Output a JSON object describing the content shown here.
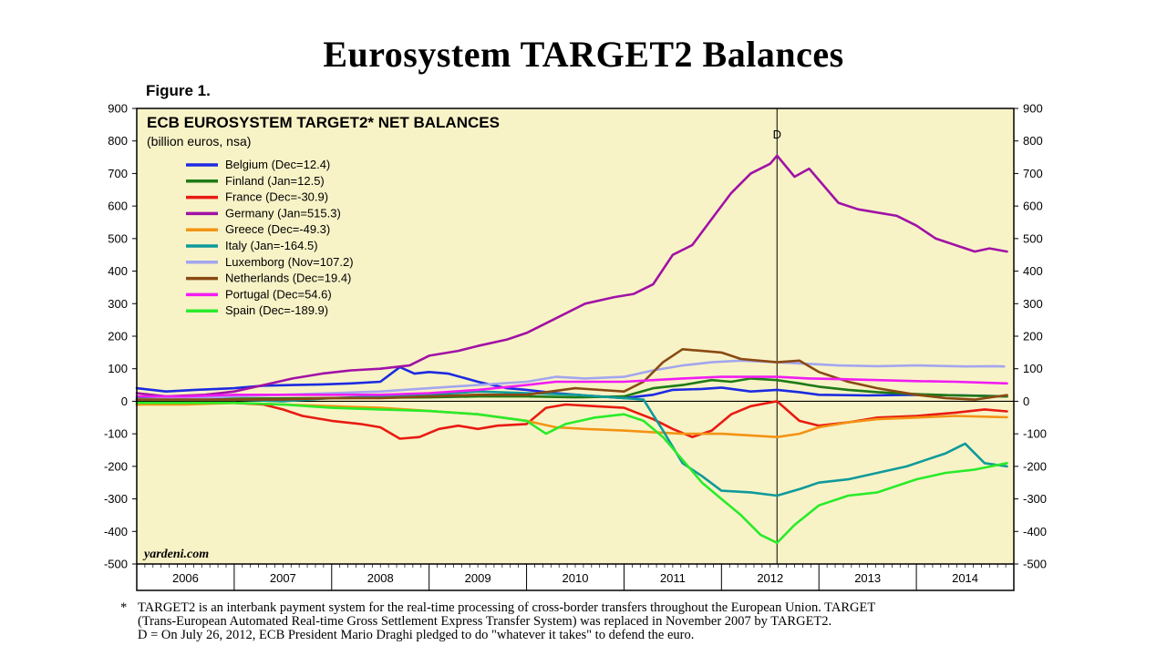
{
  "page": {
    "title": "Eurosystem TARGET2 Balances",
    "figure_label": "Figure 1."
  },
  "chart_data": {
    "type": "line",
    "title": "ECB EUROSYSTEM TARGET2* NET BALANCES",
    "subtitle": "(billion euros, nsa)",
    "xlabel": "",
    "ylabel": "",
    "ylim": [
      -500,
      900
    ],
    "y_ticks": [
      900,
      800,
      700,
      600,
      500,
      400,
      300,
      200,
      100,
      0,
      -100,
      -200,
      -300,
      -400,
      -500
    ],
    "x_range": [
      2006.0,
      2015.0
    ],
    "x_tick_labels": [
      "2006",
      "2007",
      "2008",
      "2009",
      "2010",
      "2011",
      "2012",
      "2013",
      "2014"
    ],
    "grid": false,
    "legend_position": "top-left",
    "background_color": "#f8f3c7",
    "zero_line": true,
    "annotation": {
      "label": "D",
      "x": 2012.57
    },
    "watermark": "yardeni.com",
    "series": [
      {
        "name": "Belgium (Dec=12.4)",
        "color": "#1c2be0",
        "points": [
          [
            2006.0,
            40
          ],
          [
            2006.3,
            30
          ],
          [
            2006.6,
            35
          ],
          [
            2007.0,
            40
          ],
          [
            2007.3,
            48
          ],
          [
            2007.6,
            50
          ],
          [
            2007.9,
            52
          ],
          [
            2008.2,
            55
          ],
          [
            2008.5,
            60
          ],
          [
            2008.7,
            105
          ],
          [
            2008.85,
            85
          ],
          [
            2009.0,
            90
          ],
          [
            2009.2,
            85
          ],
          [
            2009.5,
            60
          ],
          [
            2009.8,
            40
          ],
          [
            2010.0,
            35
          ],
          [
            2010.3,
            25
          ],
          [
            2010.6,
            18
          ],
          [
            2011.0,
            10
          ],
          [
            2011.3,
            20
          ],
          [
            2011.5,
            35
          ],
          [
            2011.8,
            38
          ],
          [
            2012.0,
            42
          ],
          [
            2012.3,
            30
          ],
          [
            2012.57,
            35
          ],
          [
            2012.8,
            28
          ],
          [
            2013.0,
            20
          ],
          [
            2013.5,
            18
          ],
          [
            2014.0,
            20
          ],
          [
            2014.5,
            18
          ],
          [
            2014.93,
            15
          ]
        ]
      },
      {
        "name": "Finland (Jan=12.5)",
        "color": "#1e7a16",
        "points": [
          [
            2006.0,
            5
          ],
          [
            2007.0,
            8
          ],
          [
            2008.0,
            10
          ],
          [
            2009.0,
            12
          ],
          [
            2009.5,
            15
          ],
          [
            2010.0,
            15
          ],
          [
            2010.5,
            12
          ],
          [
            2011.0,
            15
          ],
          [
            2011.3,
            40
          ],
          [
            2011.6,
            50
          ],
          [
            2011.9,
            65
          ],
          [
            2012.1,
            60
          ],
          [
            2012.3,
            70
          ],
          [
            2012.57,
            65
          ],
          [
            2012.8,
            55
          ],
          [
            2013.0,
            45
          ],
          [
            2013.3,
            35
          ],
          [
            2013.6,
            28
          ],
          [
            2014.0,
            22
          ],
          [
            2014.4,
            18
          ],
          [
            2014.93,
            15
          ]
        ]
      },
      {
        "name": "France (Dec=-30.9)",
        "color": "#e81b12",
        "points": [
          [
            2006.0,
            -10
          ],
          [
            2006.5,
            -5
          ],
          [
            2007.0,
            -5
          ],
          [
            2007.3,
            -10
          ],
          [
            2007.5,
            -25
          ],
          [
            2007.7,
            -45
          ],
          [
            2008.0,
            -60
          ],
          [
            2008.3,
            -70
          ],
          [
            2008.5,
            -80
          ],
          [
            2008.7,
            -115
          ],
          [
            2008.9,
            -110
          ],
          [
            2009.1,
            -85
          ],
          [
            2009.3,
            -75
          ],
          [
            2009.5,
            -85
          ],
          [
            2009.7,
            -75
          ],
          [
            2010.0,
            -70
          ],
          [
            2010.2,
            -20
          ],
          [
            2010.4,
            -10
          ],
          [
            2010.7,
            -15
          ],
          [
            2011.0,
            -20
          ],
          [
            2011.3,
            -55
          ],
          [
            2011.5,
            -85
          ],
          [
            2011.7,
            -110
          ],
          [
            2011.9,
            -90
          ],
          [
            2012.1,
            -40
          ],
          [
            2012.3,
            -15
          ],
          [
            2012.57,
            0
          ],
          [
            2012.8,
            -60
          ],
          [
            2013.0,
            -75
          ],
          [
            2013.3,
            -65
          ],
          [
            2013.6,
            -50
          ],
          [
            2014.0,
            -45
          ],
          [
            2014.4,
            -35
          ],
          [
            2014.7,
            -25
          ],
          [
            2014.93,
            -31
          ]
        ]
      },
      {
        "name": "Germany (Jan=515.3)",
        "color": "#a112a6",
        "points": [
          [
            2006.0,
            25
          ],
          [
            2006.3,
            15
          ],
          [
            2006.7,
            20
          ],
          [
            2007.0,
            30
          ],
          [
            2007.3,
            50
          ],
          [
            2007.6,
            70
          ],
          [
            2007.9,
            85
          ],
          [
            2008.2,
            95
          ],
          [
            2008.5,
            100
          ],
          [
            2008.8,
            110
          ],
          [
            2009.0,
            140
          ],
          [
            2009.3,
            155
          ],
          [
            2009.5,
            170
          ],
          [
            2009.8,
            190
          ],
          [
            2010.0,
            210
          ],
          [
            2010.3,
            255
          ],
          [
            2010.6,
            300
          ],
          [
            2010.9,
            320
          ],
          [
            2011.1,
            330
          ],
          [
            2011.3,
            360
          ],
          [
            2011.5,
            450
          ],
          [
            2011.7,
            480
          ],
          [
            2011.9,
            560
          ],
          [
            2012.1,
            640
          ],
          [
            2012.3,
            700
          ],
          [
            2012.5,
            730
          ],
          [
            2012.57,
            755
          ],
          [
            2012.75,
            690
          ],
          [
            2012.9,
            715
          ],
          [
            2013.0,
            680
          ],
          [
            2013.2,
            610
          ],
          [
            2013.4,
            590
          ],
          [
            2013.6,
            580
          ],
          [
            2013.8,
            570
          ],
          [
            2014.0,
            540
          ],
          [
            2014.2,
            500
          ],
          [
            2014.4,
            480
          ],
          [
            2014.6,
            460
          ],
          [
            2014.75,
            470
          ],
          [
            2014.93,
            460
          ]
        ]
      },
      {
        "name": "Greece (Dec=-49.3)",
        "color": "#f39314",
        "points": [
          [
            2006.0,
            -10
          ],
          [
            2006.5,
            -10
          ],
          [
            2007.0,
            -5
          ],
          [
            2007.5,
            -10
          ],
          [
            2008.0,
            -15
          ],
          [
            2008.5,
            -20
          ],
          [
            2009.0,
            -30
          ],
          [
            2009.5,
            -40
          ],
          [
            2010.0,
            -60
          ],
          [
            2010.3,
            -80
          ],
          [
            2010.6,
            -85
          ],
          [
            2011.0,
            -90
          ],
          [
            2011.3,
            -95
          ],
          [
            2011.6,
            -100
          ],
          [
            2012.0,
            -100
          ],
          [
            2012.3,
            -105
          ],
          [
            2012.57,
            -110
          ],
          [
            2012.8,
            -100
          ],
          [
            2013.0,
            -80
          ],
          [
            2013.3,
            -65
          ],
          [
            2013.6,
            -55
          ],
          [
            2014.0,
            -50
          ],
          [
            2014.4,
            -45
          ],
          [
            2014.93,
            -49
          ]
        ]
      },
      {
        "name": "Italy (Jan=-164.5)",
        "color": "#109a9a",
        "points": [
          [
            2006.0,
            10
          ],
          [
            2006.5,
            5
          ],
          [
            2007.0,
            5
          ],
          [
            2007.5,
            0
          ],
          [
            2008.0,
            10
          ],
          [
            2008.5,
            15
          ],
          [
            2009.0,
            20
          ],
          [
            2009.5,
            30
          ],
          [
            2010.0,
            25
          ],
          [
            2010.5,
            20
          ],
          [
            2011.0,
            10
          ],
          [
            2011.2,
            5
          ],
          [
            2011.4,
            -90
          ],
          [
            2011.6,
            -190
          ],
          [
            2011.8,
            -230
          ],
          [
            2012.0,
            -275
          ],
          [
            2012.3,
            -280
          ],
          [
            2012.57,
            -290
          ],
          [
            2012.8,
            -270
          ],
          [
            2013.0,
            -250
          ],
          [
            2013.3,
            -240
          ],
          [
            2013.6,
            -220
          ],
          [
            2013.9,
            -200
          ],
          [
            2014.1,
            -180
          ],
          [
            2014.3,
            -160
          ],
          [
            2014.5,
            -130
          ],
          [
            2014.7,
            -190
          ],
          [
            2014.93,
            -200
          ]
        ]
      },
      {
        "name": "Luxemborg (Nov=107.2)",
        "color": "#a3a6ee",
        "points": [
          [
            2006.0,
            5
          ],
          [
            2006.5,
            10
          ],
          [
            2007.0,
            15
          ],
          [
            2007.5,
            20
          ],
          [
            2008.0,
            25
          ],
          [
            2008.5,
            30
          ],
          [
            2009.0,
            40
          ],
          [
            2009.5,
            50
          ],
          [
            2010.0,
            60
          ],
          [
            2010.3,
            75
          ],
          [
            2010.6,
            70
          ],
          [
            2011.0,
            75
          ],
          [
            2011.3,
            95
          ],
          [
            2011.6,
            110
          ],
          [
            2011.9,
            120
          ],
          [
            2012.2,
            125
          ],
          [
            2012.57,
            120
          ],
          [
            2012.9,
            115
          ],
          [
            2013.2,
            110
          ],
          [
            2013.6,
            108
          ],
          [
            2014.0,
            110
          ],
          [
            2014.5,
            107
          ],
          [
            2014.8,
            108
          ],
          [
            2014.9,
            107
          ]
        ]
      },
      {
        "name": "Netherlands (Dec=19.4)",
        "color": "#8a4a12",
        "points": [
          [
            2006.0,
            5
          ],
          [
            2006.5,
            5
          ],
          [
            2007.0,
            5
          ],
          [
            2007.5,
            5
          ],
          [
            2008.0,
            10
          ],
          [
            2008.5,
            10
          ],
          [
            2009.0,
            15
          ],
          [
            2009.5,
            20
          ],
          [
            2010.0,
            20
          ],
          [
            2010.5,
            40
          ],
          [
            2011.0,
            30
          ],
          [
            2011.2,
            60
          ],
          [
            2011.4,
            120
          ],
          [
            2011.6,
            160
          ],
          [
            2011.8,
            155
          ],
          [
            2012.0,
            150
          ],
          [
            2012.2,
            130
          ],
          [
            2012.57,
            120
          ],
          [
            2012.8,
            125
          ],
          [
            2013.0,
            90
          ],
          [
            2013.3,
            60
          ],
          [
            2013.6,
            40
          ],
          [
            2014.0,
            20
          ],
          [
            2014.3,
            10
          ],
          [
            2014.6,
            5
          ],
          [
            2014.93,
            19
          ]
        ]
      },
      {
        "name": "Portugal (Dec=54.6)",
        "color": "#f21cf2",
        "points": [
          [
            2006.0,
            15
          ],
          [
            2006.5,
            15
          ],
          [
            2007.0,
            20
          ],
          [
            2007.5,
            20
          ],
          [
            2008.0,
            20
          ],
          [
            2008.5,
            20
          ],
          [
            2009.0,
            25
          ],
          [
            2009.5,
            35
          ],
          [
            2010.0,
            50
          ],
          [
            2010.3,
            60
          ],
          [
            2010.6,
            60
          ],
          [
            2011.0,
            60
          ],
          [
            2011.3,
            65
          ],
          [
            2011.6,
            70
          ],
          [
            2012.0,
            75
          ],
          [
            2012.57,
            75
          ],
          [
            2012.9,
            70
          ],
          [
            2013.2,
            68
          ],
          [
            2013.6,
            65
          ],
          [
            2014.0,
            62
          ],
          [
            2014.4,
            60
          ],
          [
            2014.93,
            55
          ]
        ]
      },
      {
        "name": "Spain (Dec=-189.9)",
        "color": "#2aeb2a",
        "points": [
          [
            2006.0,
            -5
          ],
          [
            2006.5,
            -5
          ],
          [
            2007.0,
            -5
          ],
          [
            2007.5,
            -10
          ],
          [
            2008.0,
            -20
          ],
          [
            2008.5,
            -25
          ],
          [
            2009.0,
            -30
          ],
          [
            2009.5,
            -40
          ],
          [
            2010.0,
            -60
          ],
          [
            2010.2,
            -100
          ],
          [
            2010.4,
            -70
          ],
          [
            2010.7,
            -50
          ],
          [
            2011.0,
            -40
          ],
          [
            2011.2,
            -60
          ],
          [
            2011.4,
            -110
          ],
          [
            2011.6,
            -180
          ],
          [
            2011.8,
            -250
          ],
          [
            2012.0,
            -300
          ],
          [
            2012.2,
            -350
          ],
          [
            2012.4,
            -410
          ],
          [
            2012.57,
            -435
          ],
          [
            2012.75,
            -380
          ],
          [
            2013.0,
            -320
          ],
          [
            2013.3,
            -290
          ],
          [
            2013.6,
            -280
          ],
          [
            2014.0,
            -240
          ],
          [
            2014.3,
            -220
          ],
          [
            2014.6,
            -210
          ],
          [
            2014.93,
            -190
          ]
        ]
      }
    ]
  },
  "footnote": {
    "marker": "*",
    "lines": [
      "TARGET2 is an interbank payment system for the real-time processing of cross-border transfers throughout the European Union. TARGET",
      "(Trans-European Automated Real-time Gross Settlement Express Transfer System) was replaced in November 2007 by TARGET2.",
      "D = On July 26, 2012, ECB President Mario Draghi pledged to do \"whatever it takes\" to defend the euro."
    ]
  }
}
